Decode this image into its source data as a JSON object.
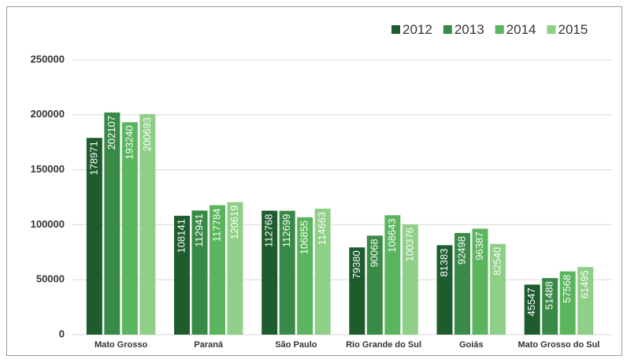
{
  "chart_data": {
    "type": "bar",
    "categories": [
      "Mato Grosso",
      "Paraná",
      "São Paulo",
      "Rio Grande do Sul",
      "Goiás",
      "Mato Grosso do Sul"
    ],
    "series": [
      {
        "name": "2012",
        "color": "#1e5c2e",
        "values": [
          178971,
          108141,
          112768,
          79380,
          81383,
          45547
        ]
      },
      {
        "name": "2013",
        "color": "#3a8a47",
        "values": [
          202107,
          112941,
          112699,
          90068,
          92498,
          51488
        ]
      },
      {
        "name": "2014",
        "color": "#5bb55e",
        "values": [
          193240,
          117784,
          106855,
          108643,
          96387,
          57568
        ]
      },
      {
        "name": "2015",
        "color": "#90cf87",
        "values": [
          200693,
          120619,
          114663,
          100376,
          82540,
          61495
        ]
      }
    ],
    "ylim": [
      0,
      250000
    ],
    "yticks": [
      0,
      50000,
      100000,
      150000,
      200000,
      250000
    ],
    "grid": true,
    "legend": "top-right"
  }
}
